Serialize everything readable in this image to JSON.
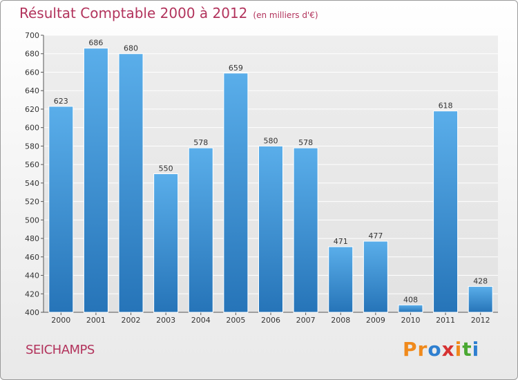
{
  "header": {
    "title": "Résultat Comptable 2000 à 2012",
    "subtitle": "(en milliers d'€)"
  },
  "commune": "SEICHAMPS",
  "logo": {
    "text": "Proxiti",
    "letters": [
      {
        "char": "P",
        "color": "#f08a1c"
      },
      {
        "char": "r",
        "color": "#f08a1c"
      },
      {
        "char": "o",
        "color": "#2e7fd0"
      },
      {
        "char": "x",
        "color": "#d63232"
      },
      {
        "char": "i",
        "color": "#f08a1c"
      },
      {
        "char": "t",
        "color": "#4aa832"
      },
      {
        "char": "i",
        "color": "#2e7fd0"
      }
    ]
  },
  "chart_data": {
    "type": "bar",
    "title": "Résultat Comptable 2000 à 2012",
    "categories": [
      "2000",
      "2001",
      "2002",
      "2003",
      "2004",
      "2005",
      "2006",
      "2007",
      "2008",
      "2009",
      "2010",
      "2011",
      "2012"
    ],
    "values": [
      623,
      686,
      680,
      550,
      578,
      659,
      580,
      578,
      471,
      477,
      408,
      618,
      428
    ],
    "ylim": [
      400,
      700
    ],
    "yticks": [
      400,
      420,
      440,
      460,
      480,
      500,
      520,
      540,
      560,
      580,
      600,
      620,
      640,
      660,
      680,
      700
    ],
    "grid": true,
    "bar_color": "#3d8fd6",
    "title_color": "#b2335c"
  }
}
